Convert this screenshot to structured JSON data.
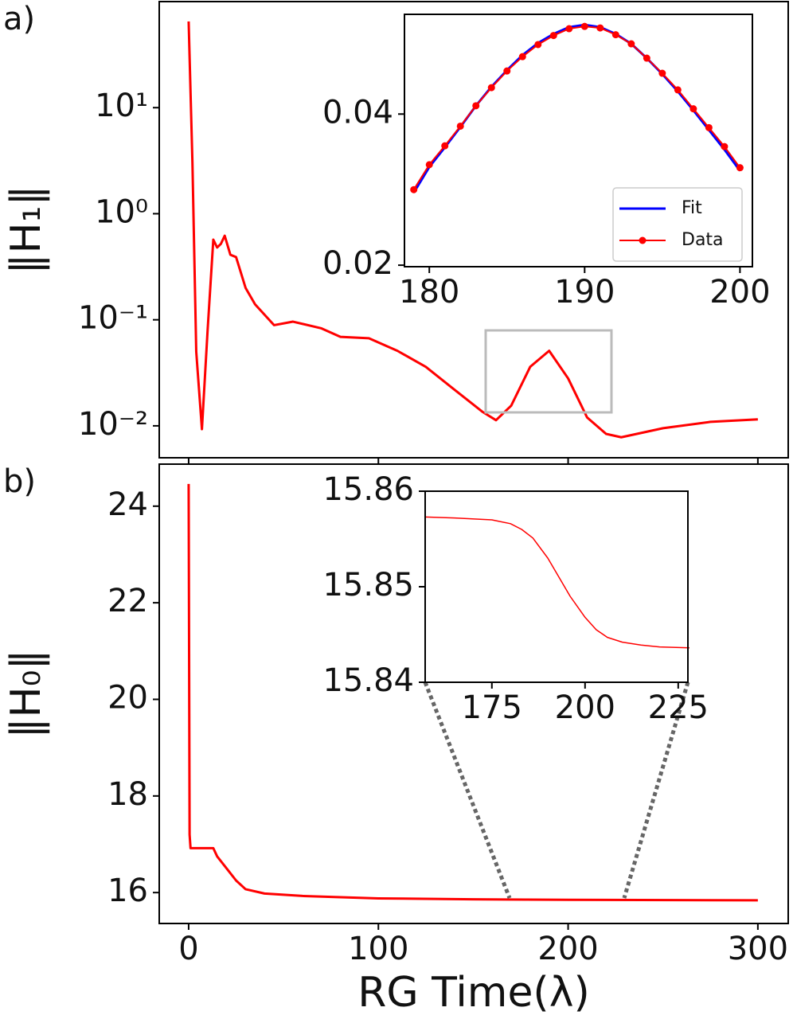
{
  "chart_data": [
    {
      "type": "line",
      "label": "a)",
      "ylabel": "‖H₁‖",
      "ylog": true,
      "color": "#ff0000",
      "x": [
        0,
        2,
        4,
        7,
        10,
        13,
        15,
        17,
        19,
        22,
        25,
        30,
        35,
        45,
        55,
        70,
        80,
        95,
        110,
        125,
        140,
        155,
        162,
        170,
        180,
        190,
        200,
        210,
        220,
        228,
        250,
        275,
        300
      ],
      "values": [
        65,
        3,
        0.05,
        0.0093,
        0.08,
        0.57,
        0.48,
        0.52,
        0.62,
        0.41,
        0.39,
        0.2,
        0.14,
        0.089,
        0.096,
        0.083,
        0.069,
        0.067,
        0.051,
        0.036,
        0.022,
        0.0135,
        0.0113,
        0.0155,
        0.036,
        0.051,
        0.028,
        0.012,
        0.0084,
        0.0078,
        0.0095,
        0.0109,
        0.0115
      ],
      "xlim": [
        -15.5,
        316
      ],
      "xticks": [
        0,
        100,
        200,
        300
      ],
      "xticklabels": false,
      "ylim": [
        0.005,
        100
      ],
      "yticks": [
        {
          "value": 0.01,
          "label": "10⁻²"
        },
        {
          "value": 0.1,
          "label": "10⁻¹"
        },
        {
          "value": 1,
          "label": "10⁰"
        },
        {
          "value": 10,
          "label": "10¹"
        }
      ]
    },
    {
      "type": "line",
      "label": "b)",
      "ylabel": "‖H₀‖",
      "xlabel": "RG Time(λ)",
      "color": "#ff0000",
      "x": [
        0,
        0.5,
        1,
        5,
        13,
        15,
        20,
        25,
        30,
        40,
        60,
        100,
        150,
        200,
        300
      ],
      "values": [
        24.46,
        17.2,
        16.92,
        16.92,
        16.92,
        16.75,
        16.5,
        16.25,
        16.07,
        15.98,
        15.93,
        15.88,
        15.86,
        15.85,
        15.84
      ],
      "xlim": [
        -15.5,
        316
      ],
      "xticks": [
        0,
        100,
        200,
        300
      ],
      "ylim": [
        15.36,
        24.87
      ],
      "yticks": [
        16,
        18,
        20,
        22,
        24
      ]
    },
    {
      "type": "line",
      "legend": "lower right",
      "x": [
        179,
        180,
        181,
        182,
        183,
        184,
        185,
        186,
        187,
        188,
        189,
        190,
        191,
        192,
        193,
        194,
        195,
        196,
        197,
        198,
        199,
        200
      ],
      "series": [
        {
          "name": "Fit",
          "color": "#0000ff",
          "values": [
            0.0296,
            0.033,
            0.0356,
            0.0383,
            0.0411,
            0.0436,
            0.0458,
            0.0478,
            0.0494,
            0.0506,
            0.0515,
            0.0518,
            0.0515,
            0.0506,
            0.0493,
            0.0474,
            0.0453,
            0.043,
            0.0405,
            0.0379,
            0.0353,
            0.0325
          ]
        },
        {
          "name": "Data",
          "color": "#ff0000",
          "marker": "o",
          "values": [
            0.03,
            0.0333,
            0.0358,
            0.0384,
            0.0411,
            0.0435,
            0.0457,
            0.0476,
            0.0492,
            0.0504,
            0.0513,
            0.0516,
            0.0514,
            0.0505,
            0.0493,
            0.0474,
            0.0454,
            0.0432,
            0.0407,
            0.0382,
            0.0357,
            0.0329
          ]
        }
      ],
      "xlim": [
        178.4,
        200.8
      ],
      "xticks": [
        180,
        190,
        200
      ],
      "ylim": [
        0.0198,
        0.0532
      ],
      "yticks": [
        0.02,
        0.04
      ]
    },
    {
      "type": "line",
      "color": "#ff0000",
      "x": [
        157,
        165,
        175,
        180,
        183,
        186,
        190,
        193,
        196,
        200,
        203,
        206,
        210,
        215,
        220,
        228
      ],
      "values": [
        15.8573,
        15.8572,
        15.857,
        15.8566,
        15.856,
        15.8551,
        15.853,
        15.851,
        15.849,
        15.8468,
        15.8455,
        15.8447,
        15.8442,
        15.8439,
        15.8437,
        15.8436
      ],
      "xlim": [
        157.1,
        227.6
      ],
      "xticks": [
        175,
        200,
        225
      ],
      "ylim": [
        15.84,
        15.86
      ],
      "yticks": [
        15.84,
        15.85,
        15.86
      ]
    }
  ]
}
